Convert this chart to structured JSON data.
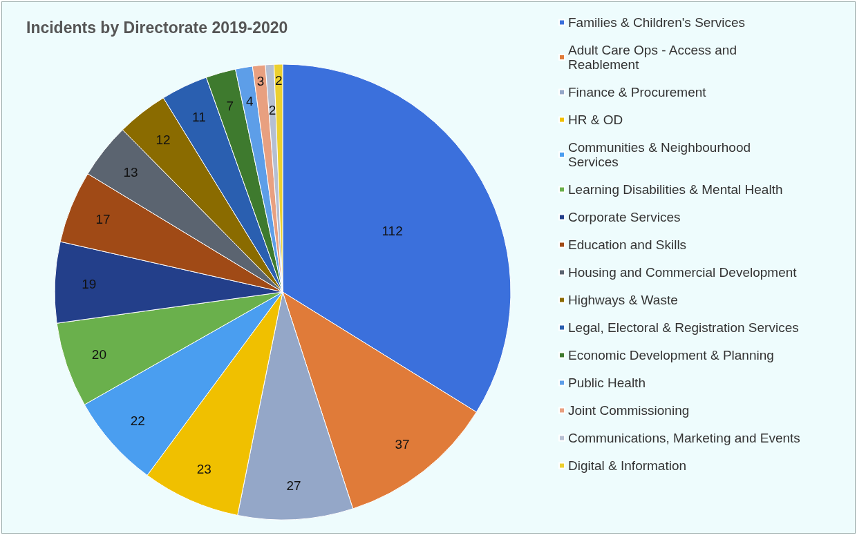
{
  "chart_data": {
    "type": "pie",
    "title": "Incidents by Directorate 2019-2020",
    "categories": [
      "Families & Children's Services",
      "Adult Care Ops - Access and Reablement",
      "Finance & Procurement",
      "HR & OD",
      "Communities & Neighbourhood Services",
      "Learning Disabilities & Mental Health",
      "Corporate Services",
      "Education and Skills",
      "Housing and Commercial Development",
      "Highways & Waste",
      "Legal, Electoral & Registration Services",
      "Economic Development & Planning",
      "Public Health",
      "Joint Commissioning",
      "Communications, Marketing and Events",
      "Digital & Information"
    ],
    "values": [
      112,
      37,
      27,
      23,
      22,
      20,
      19,
      17,
      13,
      12,
      11,
      7,
      4,
      3,
      2,
      2
    ],
    "colors": [
      "#3b70dc",
      "#e07b39",
      "#94a7c8",
      "#f0c000",
      "#4a9ef0",
      "#6ab04c",
      "#233f8a",
      "#a04a16",
      "#5b6470",
      "#8a6b00",
      "#2a5fb0",
      "#3e7a2e",
      "#5d9ee8",
      "#e8a080",
      "#b5bfd2",
      "#ecd030"
    ],
    "data_labels": true,
    "legend": "right"
  }
}
